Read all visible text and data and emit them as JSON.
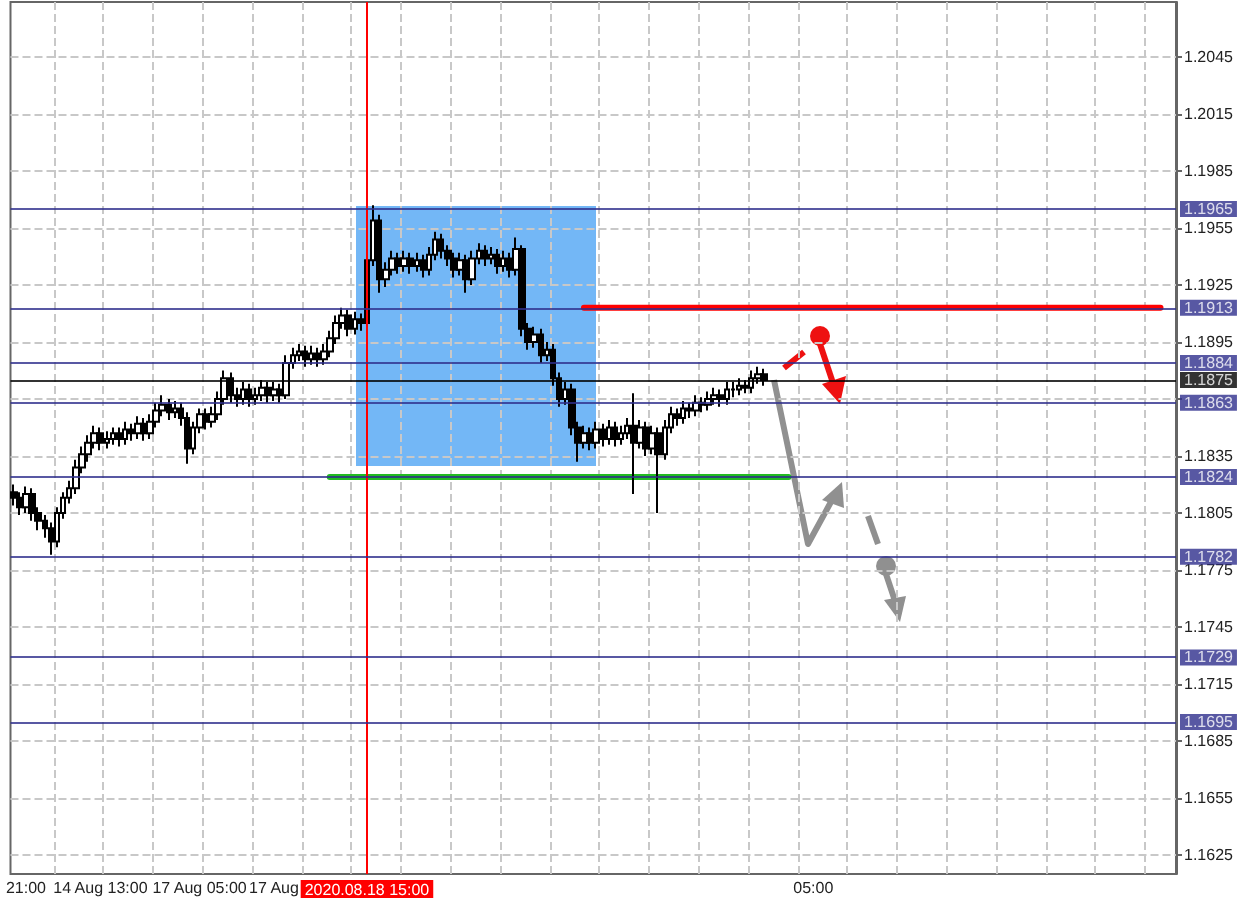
{
  "chart_data": {
    "type": "candlestick",
    "categories": [
      null,
      null,
      "21:00",
      null,
      null,
      null,
      null,
      null,
      null,
      null,
      null,
      null,
      null,
      null,
      "14 Aug 13:00",
      null,
      null,
      null,
      null,
      null,
      null,
      null,
      null,
      null,
      null,
      null,
      null,
      null,
      null,
      null,
      "17 Aug 05:00",
      null,
      null,
      null,
      null,
      null,
      null,
      null,
      null,
      null,
      null,
      null,
      "17 Aug",
      null,
      null,
      null,
      null,
      null,
      null,
      null,
      null,
      null,
      null,
      null,
      null,
      null,
      null,
      "2020.08.18 15:00",
      null,
      null,
      null,
      null,
      null,
      null,
      null,
      null,
      null,
      null,
      null,
      null,
      null,
      null,
      null,
      null,
      null,
      null,
      null,
      null,
      null,
      null,
      null,
      null,
      null,
      null,
      null,
      null,
      null,
      null,
      null,
      null,
      null,
      null,
      null,
      null,
      null,
      null,
      null,
      null,
      null,
      null,
      null,
      null,
      null,
      null,
      null,
      null,
      null,
      null,
      null,
      null,
      null,
      null,
      null,
      null,
      null,
      null,
      null,
      null,
      null,
      null,
      null,
      null,
      null,
      null,
      null,
      null,
      null,
      null,
      null,
      "05:00",
      null,
      null,
      null,
      null,
      null,
      null,
      null,
      null,
      null,
      null,
      null,
      null,
      null,
      null,
      null,
      null,
      null,
      null,
      null,
      null,
      null,
      null,
      null,
      null,
      null,
      null,
      null,
      null,
      null,
      null,
      null,
      null,
      null,
      null,
      null,
      null,
      null,
      null,
      null,
      null,
      null,
      null,
      null,
      null,
      null,
      null,
      null,
      null,
      null,
      null,
      null,
      null,
      null,
      null,
      null,
      null,
      null,
      null
    ],
    "ohlc": [
      [
        1.1816,
        1.182,
        1.1809,
        1.1813
      ],
      [
        1.1813,
        1.1816,
        1.1804,
        1.1808
      ],
      [
        1.1808,
        1.1819,
        1.1805,
        1.1815
      ],
      [
        1.1815,
        1.1818,
        1.1801,
        1.1805
      ],
      [
        1.1805,
        1.1808,
        1.1796,
        1.1801
      ],
      [
        1.1801,
        1.1804,
        1.1792,
        1.1797
      ],
      [
        1.1797,
        1.18,
        1.1783,
        1.179
      ],
      [
        1.179,
        1.1808,
        1.1787,
        1.1805
      ],
      [
        1.1805,
        1.1816,
        1.1802,
        1.1813
      ],
      [
        1.1813,
        1.1822,
        1.181,
        1.1818
      ],
      [
        1.1818,
        1.1833,
        1.1815,
        1.1829
      ],
      [
        1.1829,
        1.184,
        1.1826,
        1.1836
      ],
      [
        1.1836,
        1.1846,
        1.1832,
        1.1842
      ],
      [
        1.1842,
        1.1851,
        1.1839,
        1.1847
      ],
      [
        1.1847,
        1.185,
        1.1838,
        1.1842
      ],
      [
        1.1842,
        1.1848,
        1.1839,
        1.1844
      ],
      [
        1.1844,
        1.185,
        1.1841,
        1.1847
      ],
      [
        1.1847,
        1.185,
        1.184,
        1.1844
      ],
      [
        1.1844,
        1.1853,
        1.1841,
        1.1849
      ],
      [
        1.1849,
        1.1852,
        1.1843,
        1.1847
      ],
      [
        1.1847,
        1.1856,
        1.1844,
        1.1852
      ],
      [
        1.1852,
        1.1855,
        1.1843,
        1.1847
      ],
      [
        1.1847,
        1.1857,
        1.1844,
        1.1853
      ],
      [
        1.1853,
        1.1863,
        1.185,
        1.1859
      ],
      [
        1.1859,
        1.1867,
        1.1856,
        1.1862
      ],
      [
        1.1862,
        1.1865,
        1.1854,
        1.1858
      ],
      [
        1.1858,
        1.1864,
        1.1855,
        1.186
      ],
      [
        1.186,
        1.1863,
        1.1851,
        1.1855
      ],
      [
        1.1855,
        1.1858,
        1.1831,
        1.1839
      ],
      [
        1.1839,
        1.1853,
        1.1836,
        1.185
      ],
      [
        1.185,
        1.186,
        1.1847,
        1.1857
      ],
      [
        1.1857,
        1.186,
        1.1849,
        1.1853
      ],
      [
        1.1853,
        1.1861,
        1.185,
        1.1857
      ],
      [
        1.1857,
        1.1869,
        1.1854,
        1.1865
      ],
      [
        1.1865,
        1.188,
        1.1862,
        1.1876
      ],
      [
        1.1876,
        1.1879,
        1.1863,
        1.1867
      ],
      [
        1.1867,
        1.1871,
        1.1861,
        1.1865
      ],
      [
        1.1865,
        1.1874,
        1.1862,
        1.187
      ],
      [
        1.187,
        1.1873,
        1.1861,
        1.1865
      ],
      [
        1.1865,
        1.1871,
        1.1862,
        1.1867
      ],
      [
        1.1867,
        1.1875,
        1.1864,
        1.1871
      ],
      [
        1.1871,
        1.1874,
        1.1863,
        1.1867
      ],
      [
        1.1867,
        1.1874,
        1.1864,
        1.187
      ],
      [
        1.187,
        1.1873,
        1.1863,
        1.1867
      ],
      [
        1.1867,
        1.1888,
        1.1865,
        1.1884
      ],
      [
        1.1884,
        1.1892,
        1.1881,
        1.1888
      ],
      [
        1.1888,
        1.1894,
        1.1885,
        1.189
      ],
      [
        1.189,
        1.1893,
        1.1882,
        1.1886
      ],
      [
        1.1886,
        1.1893,
        1.1883,
        1.1889
      ],
      [
        1.1889,
        1.1892,
        1.1882,
        1.1886
      ],
      [
        1.1886,
        1.1894,
        1.1883,
        1.189
      ],
      [
        1.189,
        1.1901,
        1.1887,
        1.1897
      ],
      [
        1.1897,
        1.1909,
        1.1894,
        1.1905
      ],
      [
        1.1905,
        1.1913,
        1.1902,
        1.1909
      ],
      [
        1.1909,
        1.1912,
        1.1898,
        1.1902
      ],
      [
        1.1902,
        1.1911,
        1.1899,
        1.1907
      ],
      [
        1.1907,
        1.191,
        1.1901,
        1.1905
      ],
      [
        1.1905,
        1.1942,
        1.1903,
        1.1938
      ],
      [
        1.1938,
        1.1967,
        1.1935,
        1.1959
      ],
      [
        1.1959,
        1.1962,
        1.1921,
        1.1928
      ],
      [
        1.1928,
        1.1937,
        1.1924,
        1.1933
      ],
      [
        1.1933,
        1.1943,
        1.193,
        1.1939
      ],
      [
        1.1939,
        1.1942,
        1.1931,
        1.1935
      ],
      [
        1.1935,
        1.1943,
        1.1932,
        1.1939
      ],
      [
        1.1939,
        1.1942,
        1.1931,
        1.1935
      ],
      [
        1.1935,
        1.1942,
        1.1932,
        1.1938
      ],
      [
        1.1938,
        1.1941,
        1.1929,
        1.1933
      ],
      [
        1.1933,
        1.1945,
        1.193,
        1.1941
      ],
      [
        1.1941,
        1.1953,
        1.1938,
        1.1949
      ],
      [
        1.1949,
        1.1952,
        1.1939,
        1.1943
      ],
      [
        1.1943,
        1.1946,
        1.1935,
        1.1939
      ],
      [
        1.1939,
        1.1942,
        1.1929,
        1.1933
      ],
      [
        1.1933,
        1.1942,
        1.193,
        1.1938
      ],
      [
        1.1938,
        1.1941,
        1.1921,
        1.1928
      ],
      [
        1.1928,
        1.1943,
        1.1925,
        1.1939
      ],
      [
        1.1939,
        1.1947,
        1.1936,
        1.1943
      ],
      [
        1.1943,
        1.1946,
        1.1935,
        1.1939
      ],
      [
        1.1939,
        1.1945,
        1.1936,
        1.1941
      ],
      [
        1.1941,
        1.1944,
        1.1931,
        1.1935
      ],
      [
        1.1935,
        1.1943,
        1.1932,
        1.1939
      ],
      [
        1.1939,
        1.1942,
        1.1929,
        1.1933
      ],
      [
        1.1933,
        1.195,
        1.193,
        1.1944
      ],
      [
        1.1944,
        1.1946,
        1.1898,
        1.1902
      ],
      [
        1.1902,
        1.1905,
        1.1891,
        1.1895
      ],
      [
        1.1895,
        1.1903,
        1.1892,
        1.1899
      ],
      [
        1.1899,
        1.1902,
        1.1884,
        1.1888
      ],
      [
        1.1888,
        1.1895,
        1.1885,
        1.1891
      ],
      [
        1.1891,
        1.1894,
        1.1872,
        1.1876
      ],
      [
        1.1876,
        1.1879,
        1.1861,
        1.1865
      ],
      [
        1.1865,
        1.1874,
        1.1862,
        1.187
      ],
      [
        1.187,
        1.1873,
        1.1846,
        1.185
      ],
      [
        1.185,
        1.1853,
        1.1832,
        1.1842
      ],
      [
        1.1842,
        1.1851,
        1.1839,
        1.1847
      ],
      [
        1.1847,
        1.185,
        1.1838,
        1.1842
      ],
      [
        1.1842,
        1.1853,
        1.1839,
        1.1849
      ],
      [
        1.1849,
        1.1852,
        1.184,
        1.1844
      ],
      [
        1.1844,
        1.1854,
        1.1841,
        1.185
      ],
      [
        1.185,
        1.1853,
        1.184,
        1.1844
      ],
      [
        1.1844,
        1.1851,
        1.1841,
        1.1847
      ],
      [
        1.1847,
        1.1855,
        1.1844,
        1.1851
      ],
      [
        1.1851,
        1.1868,
        1.1815,
        1.1842
      ],
      [
        1.1842,
        1.1854,
        1.1839,
        1.185
      ],
      [
        1.185,
        1.1853,
        1.1835,
        1.1839
      ],
      [
        1.1839,
        1.1851,
        1.1836,
        1.1847
      ],
      [
        1.1847,
        1.185,
        1.1805,
        1.1836
      ],
      [
        1.1836,
        1.1854,
        1.1833,
        1.185
      ],
      [
        1.185,
        1.1861,
        1.1847,
        1.1857
      ],
      [
        1.1857,
        1.186,
        1.1851,
        1.1855
      ],
      [
        1.1855,
        1.1864,
        1.1852,
        1.186
      ],
      [
        1.186,
        1.1863,
        1.1855,
        1.1859
      ],
      [
        1.1859,
        1.1867,
        1.1856,
        1.1863
      ],
      [
        1.1863,
        1.1866,
        1.1858,
        1.1862
      ],
      [
        1.1862,
        1.1869,
        1.1859,
        1.1865
      ],
      [
        1.1865,
        1.1871,
        1.1862,
        1.1867
      ],
      [
        1.1867,
        1.187,
        1.1861,
        1.1865
      ],
      [
        1.1865,
        1.1874,
        1.1862,
        1.187
      ],
      [
        1.187,
        1.1874,
        1.1866,
        1.187
      ],
      [
        1.187,
        1.1876,
        1.1867,
        1.1872
      ],
      [
        1.1872,
        1.1875,
        1.1868,
        1.1871
      ],
      [
        1.1871,
        1.188,
        1.1868,
        1.1876
      ],
      [
        1.1876,
        1.1882,
        1.1873,
        1.1878
      ],
      [
        1.1878,
        1.1881,
        1.1872,
        1.1875
      ],
      null,
      null,
      null,
      null,
      null,
      null,
      null,
      null,
      null,
      null,
      null,
      null,
      null,
      null,
      null,
      null,
      null,
      null,
      null,
      null,
      null,
      null,
      null,
      null,
      null,
      null,
      null,
      null,
      null,
      null,
      null,
      null,
      null,
      null,
      null,
      null,
      null,
      null,
      null,
      null,
      null,
      null,
      null,
      null,
      null,
      null,
      null,
      null,
      null,
      null,
      null,
      null,
      null,
      null,
      null,
      null,
      null,
      null,
      null,
      null,
      null,
      null,
      null,
      null,
      null,
      null
    ],
    "series": [
      {
        "type": "line",
        "color": "#ff0000",
        "values": [
          null,
          null,
          null,
          null,
          null,
          null,
          null,
          null,
          null,
          null,
          null,
          null,
          null,
          null,
          null,
          null,
          null,
          null,
          null,
          null,
          null,
          null,
          null,
          null,
          null,
          null,
          null,
          null,
          null,
          null,
          null,
          null,
          null,
          null,
          null,
          null,
          null,
          null,
          null,
          null,
          null,
          null,
          null,
          null,
          null,
          null,
          null,
          null,
          null,
          null,
          null,
          null,
          null,
          null,
          null,
          null,
          null,
          null,
          null,
          null,
          null,
          null,
          null,
          null,
          null,
          null,
          null,
          null,
          null,
          null,
          null,
          null,
          null,
          null,
          null,
          null,
          null,
          null,
          null,
          null,
          null,
          null,
          null,
          null,
          null,
          null,
          null,
          null,
          null,
          null,
          null,
          null,
          1.1913,
          null,
          null,
          null,
          null,
          null,
          null,
          null,
          null,
          null,
          null,
          null,
          null,
          null,
          null,
          null,
          null,
          null,
          null,
          null,
          null,
          null,
          null,
          null,
          null,
          null,
          null,
          null,
          null,
          null,
          null,
          null,
          null,
          null,
          null,
          null,
          null,
          null,
          null,
          null,
          null,
          null,
          null,
          null,
          null,
          null,
          null,
          null,
          null,
          null,
          null,
          null,
          null,
          null,
          null,
          null,
          null,
          null,
          null,
          null,
          null,
          null,
          null,
          null,
          null,
          null,
          null,
          null,
          null,
          null,
          null,
          null,
          null,
          null,
          null,
          null,
          null,
          null,
          null,
          null,
          null,
          null,
          null,
          null,
          null,
          null,
          null,
          null,
          null,
          null,
          null,
          null,
          null,
          1.1913,
          null,
          null
        ]
      },
      {
        "type": "line",
        "color": "#22bb22",
        "values": [
          null,
          null,
          null,
          null,
          null,
          null,
          null,
          null,
          null,
          null,
          null,
          null,
          null,
          null,
          null,
          null,
          null,
          null,
          null,
          null,
          null,
          null,
          null,
          null,
          null,
          null,
          null,
          null,
          null,
          null,
          null,
          null,
          null,
          null,
          null,
          null,
          null,
          null,
          null,
          null,
          null,
          null,
          null,
          null,
          null,
          null,
          null,
          null,
          null,
          null,
          null,
          1.1824,
          null,
          null,
          null,
          null,
          null,
          null,
          null,
          null,
          null,
          null,
          null,
          null,
          null,
          null,
          null,
          null,
          null,
          null,
          null,
          null,
          null,
          null,
          null,
          null,
          null,
          null,
          null,
          null,
          null,
          null,
          null,
          null,
          null,
          null,
          null,
          null,
          null,
          null,
          null,
          null,
          null,
          null,
          null,
          null,
          null,
          null,
          null,
          null,
          null,
          null,
          null,
          null,
          null,
          null,
          null,
          null,
          null,
          null,
          null,
          null,
          null,
          null,
          null,
          null,
          null,
          null,
          null,
          null,
          null,
          null,
          null,
          null,
          null,
          1.1824,
          null,
          null,
          null,
          null,
          null,
          null,
          null,
          null,
          null,
          null,
          null,
          null,
          null,
          null,
          null,
          null,
          null,
          null,
          null,
          null,
          null,
          null,
          null,
          null,
          null,
          null,
          null,
          null,
          null,
          null,
          null,
          null,
          null,
          null,
          null,
          null,
          null,
          null,
          null,
          null,
          null,
          null,
          null,
          null,
          null,
          null,
          null,
          null,
          null,
          null,
          null,
          null,
          null,
          null,
          null,
          null,
          null,
          null,
          null,
          null,
          null,
          null
        ]
      }
    ],
    "ylim": [
      1.1615,
      1.2074
    ],
    "yticks": [
      1.1625,
      1.1655,
      1.1685,
      1.1715,
      1.1745,
      1.1775,
      1.1805,
      1.1835,
      {
        "value": 1.1865,
        "label": null
      },
      1.1895,
      1.1925,
      1.1955,
      1.1985,
      1.2015,
      1.2045
    ],
    "ref_lines": [
      {
        "axis": "x",
        "value": "2020.08.18 15:00",
        "color": "#ff0000"
      },
      {
        "axis": "y",
        "value": 1.1965,
        "label": "1.1965",
        "color": "#2e2e8c"
      },
      {
        "axis": "y",
        "value": 1.1913,
        "label": "1.1913",
        "color": "#2e2e8c"
      },
      {
        "axis": "y",
        "value": 1.1884,
        "label": "1.1884",
        "color": "#2e2e8c"
      },
      {
        "axis": "y",
        "value": 1.1875,
        "label": "1.1875",
        "color": "#000000"
      },
      {
        "axis": "y",
        "value": 1.1863,
        "label": "1.1863",
        "color": "#2e2e8c"
      },
      {
        "axis": "y",
        "value": 1.1824,
        "label": "1.1824",
        "color": "#2e2e8c"
      },
      {
        "axis": "y",
        "value": 1.1782,
        "label": "1.1782",
        "color": "#2e2e8c"
      },
      {
        "axis": "y",
        "value": 1.1729,
        "label": "1.1729",
        "color": "#2e2e8c"
      },
      {
        "axis": "y",
        "value": 1.1695,
        "label": "1.1695",
        "color": "#2e2e8c"
      }
    ],
    "grid": true,
    "marker": "none",
    "line_style": "solid"
  }
}
